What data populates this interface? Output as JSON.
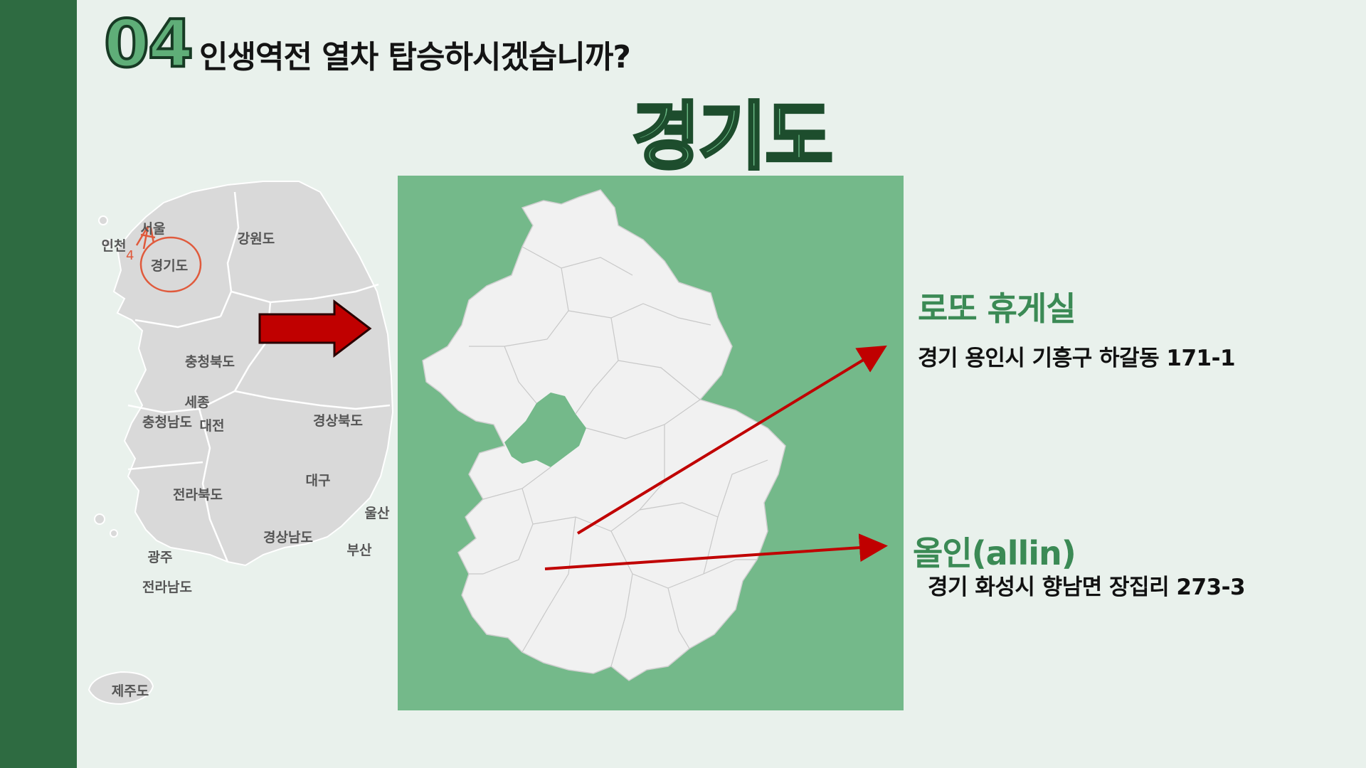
{
  "slide": {
    "number": "04",
    "heading": "인생역전 열차 탑승하시겠습니까?",
    "region_title": "경기도"
  },
  "korea_map": {
    "labels": {
      "seoul": "서울",
      "incheon": "인천",
      "gyeonggi": "경기도",
      "gangwon": "강원도",
      "chungbuk": "충청북도",
      "sejong": "세종",
      "chungnam": "충청남도",
      "daejeon": "대전",
      "gyeongbuk": "경상북도",
      "daegu": "대구",
      "jeonbuk": "전라북도",
      "ulsan": "울산",
      "gyeongnam": "경상남도",
      "busan": "부산",
      "gwangju": "광주",
      "jeonnam": "전라남도",
      "jeju": "제주도"
    },
    "annotation": "4",
    "land_color": "#d9d9d9",
    "annotation_color": "#e05a3c"
  },
  "places": [
    {
      "name": "로또 휴게실",
      "address": "경기 용인시 기흥구 하갈동 171-1"
    },
    {
      "name": "올인(allin)",
      "address": "경기 화성시 향남면 장집리 273-3"
    }
  ],
  "colors": {
    "side_bar": "#2e6b41",
    "background": "#e9f1ec",
    "panel_green": "#74b98a",
    "arrow_red": "#c00000",
    "place_name_green": "#3b8a55"
  }
}
